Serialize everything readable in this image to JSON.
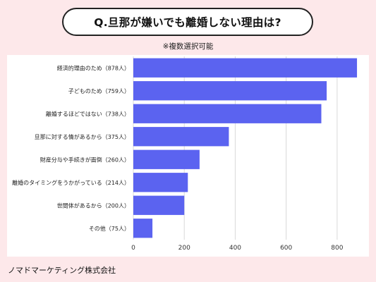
{
  "title": "Q.旦那が嫌いでも離婚しない理由は?",
  "note": "※複数選択可能",
  "footer": "ノマドマーケティング株式会社",
  "colors": {
    "bar": "#5b63f0",
    "background": "#fde8ea",
    "grid": "#d9d9d9"
  },
  "chart_data": {
    "type": "bar",
    "orientation": "horizontal",
    "categories": [
      "経済的理由のため（878人）",
      "子どものため（759人）",
      "離婚するほどではない（738人）",
      "旦那に対する情があるから（375人）",
      "財産分与や手続きが面倒（260人）",
      "離婚のタイミングをうかがっている（214人）",
      "世間体があるから（200人）",
      "その他（75人）"
    ],
    "values": [
      878,
      759,
      738,
      375,
      260,
      214,
      200,
      75
    ],
    "x_ticks": [
      0,
      200,
      400,
      600,
      800
    ],
    "xlim": [
      0,
      900
    ],
    "grid": true
  }
}
